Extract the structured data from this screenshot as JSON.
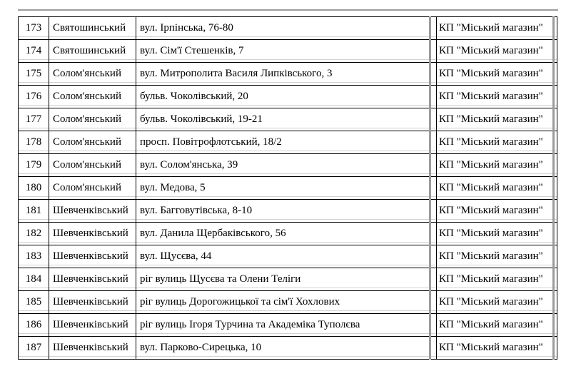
{
  "page": {
    "kind": "document-table-fragment",
    "border_color": "#000000",
    "ghost_line_color": "#9d9d9d",
    "background": "#ffffff"
  },
  "table": {
    "columns": [
      "row_number",
      "district",
      "address",
      "spacer",
      "supplier",
      "edge_spacer"
    ],
    "rows": [
      {
        "num": "173",
        "district": "Святошинський",
        "address": "вул. Ірпінська, 76-80",
        "supplier": "КП \"Міський магазин\""
      },
      {
        "num": "174",
        "district": "Святошинський",
        "address": "вул. Сім'ї Стешенків, 7",
        "supplier": "КП \"Міський магазин\""
      },
      {
        "num": "175",
        "district": "Солом'янський",
        "address": "вул. Митрополита Василя Липківського, 3",
        "supplier": "КП \"Міський магазин\""
      },
      {
        "num": "176",
        "district": "Солом'янський",
        "address": "бульв. Чоколівський, 20",
        "supplier": "КП \"Міський магазин\""
      },
      {
        "num": "177",
        "district": "Солом'янський",
        "address": "бульв. Чоколівський, 19-21",
        "supplier": "КП \"Міський магазин\""
      },
      {
        "num": "178",
        "district": "Солом'янський",
        "address": "просп. Повітрофлотський, 18/2",
        "supplier": "КП \"Міський магазин\""
      },
      {
        "num": "179",
        "district": "Солом'янський",
        "address": "вул. Солом'янська, 39",
        "supplier": "КП \"Міський магазин\""
      },
      {
        "num": "180",
        "district": "Солом'янський",
        "address": "вул. Медова, 5",
        "supplier": "КП \"Міський магазин\""
      },
      {
        "num": "181",
        "district": "Шевченківський",
        "address": "вул. Багговутівська, 8-10",
        "supplier": "КП \"Міський магазин\""
      },
      {
        "num": "182",
        "district": "Шевченківський",
        "address": "вул. Данила Щербаківського, 56",
        "supplier": "КП \"Міський магазин\""
      },
      {
        "num": "183",
        "district": "Шевченківський",
        "address": "вул. Щусєва, 44",
        "supplier": "КП \"Міський магазин\""
      },
      {
        "num": "184",
        "district": "Шевченківський",
        "address": "ріг вулиць Щусєва та Олени Теліги",
        "supplier": "КП \"Міський магазин\""
      },
      {
        "num": "185",
        "district": "Шевченківський",
        "address": "ріг вулиць Дорогожицької та сім'ї Хохлових",
        "supplier": "КП \"Міський магазин\""
      },
      {
        "num": "186",
        "district": "Шевченківський",
        "address": "ріг вулиць Ігоря Турчина та Академіка Туполєва",
        "supplier": "КП \"Міський магазин\""
      },
      {
        "num": "187",
        "district": "Шевченківський",
        "address": "вул. Парково-Сирецька, 10",
        "supplier": "КП \"Міський магазин\""
      }
    ]
  }
}
